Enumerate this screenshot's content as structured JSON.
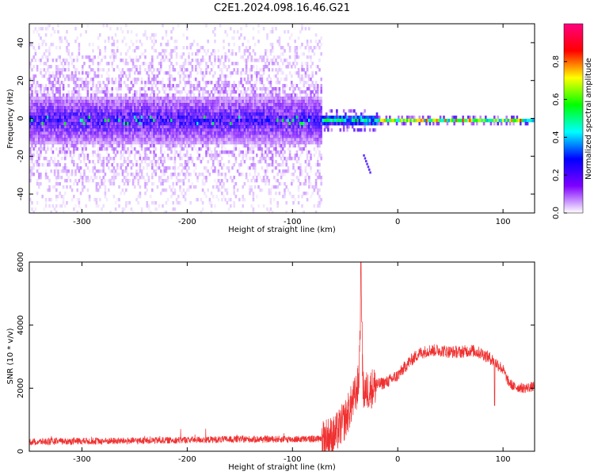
{
  "title": "C2E1.2024.098.16.46.G21",
  "chart_data": [
    {
      "type": "heatmap",
      "xlabel": "Height of straight line (km)",
      "ylabel": "Frequency (Hz)",
      "xlim": [
        -350,
        130
      ],
      "ylim": [
        -50,
        50
      ],
      "xticks": [
        -300,
        -200,
        -100,
        0,
        100
      ],
      "yticks": [
        -40,
        -20,
        0,
        20,
        40
      ],
      "colorbar": {
        "label": "Normalized spectral amplitude",
        "range": [
          0,
          1
        ],
        "ticks": [
          0.0,
          0.2,
          0.4,
          0.6,
          0.8
        ],
        "colormap": [
          "#ffffff",
          "#7f00ff",
          "#0000ff",
          "#00ffff",
          "#00ff00",
          "#ffff00",
          "#ff0000",
          "#ff0080"
        ]
      },
      "regions": [
        {
          "x": [
            -350,
            -72
          ],
          "center_hz": 0,
          "core_halfwidth_hz": 12,
          "spread_halfwidth_hz": 50,
          "peak_amplitude": 0.3
        },
        {
          "x": [
            -72,
            -20
          ],
          "center_hz": 0,
          "core_halfwidth_hz": 3,
          "spread_halfwidth_hz": 6,
          "peak_amplitude": 0.6
        },
        {
          "x": [
            -20,
            130
          ],
          "center_hz": 0,
          "core_halfwidth_hz": 1,
          "spread_halfwidth_hz": 3,
          "peak_amplitude": 0.95
        }
      ],
      "streak": {
        "x": [
          -33,
          -27
        ],
        "hz": [
          -19,
          -28
        ]
      }
    },
    {
      "type": "line",
      "xlabel": "Height of straight line (km)",
      "ylabel": "SNR (10 * v/v)",
      "xlim": [
        -350,
        130
      ],
      "ylim": [
        0,
        6000
      ],
      "xticks": [
        -300,
        -200,
        -100,
        0,
        100
      ],
      "yticks": [
        0,
        2000,
        4000,
        6000
      ],
      "series": [
        {
          "color": "#f03030",
          "x": [
            -350,
            -300,
            -250,
            -200,
            -150,
            -100,
            -75,
            -60,
            -50,
            -45,
            -40,
            -37,
            -35,
            -33,
            -30,
            -20,
            -10,
            0,
            10,
            20,
            30,
            40,
            50,
            60,
            70,
            80,
            90,
            100,
            105,
            110,
            120,
            130
          ],
          "y": [
            300,
            320,
            330,
            360,
            380,
            380,
            390,
            500,
            1000,
            1400,
            1800,
            2200,
            5000,
            1900,
            1900,
            2100,
            2200,
            2400,
            2800,
            3100,
            3200,
            3200,
            3150,
            3150,
            3200,
            3100,
            2900,
            2600,
            2200,
            2050,
            2000,
            2050
          ]
        }
      ]
    }
  ]
}
